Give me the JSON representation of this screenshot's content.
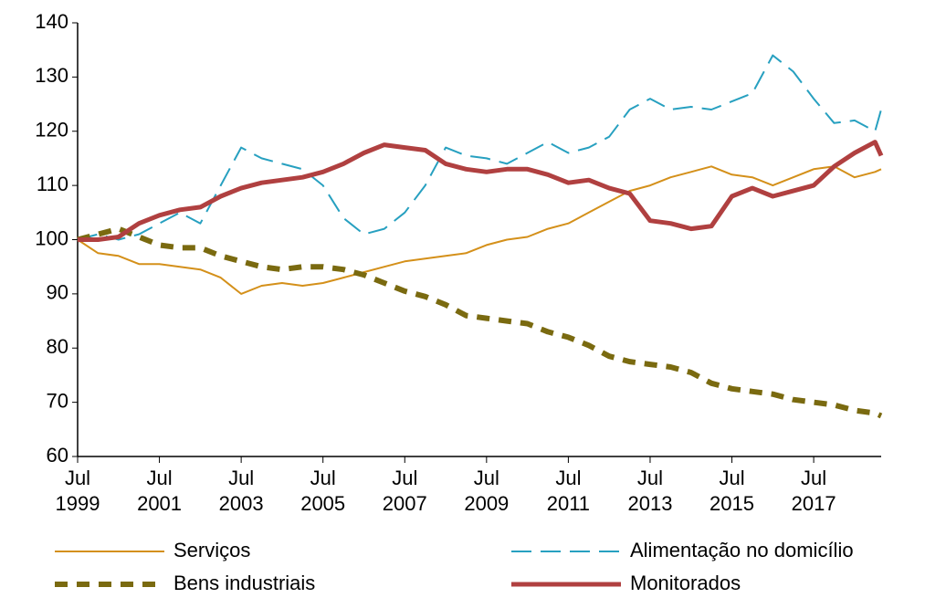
{
  "chart_data": {
    "type": "line",
    "x": [
      1999.5,
      2000,
      2000.5,
      2001,
      2001.5,
      2002,
      2002.5,
      2003,
      2003.5,
      2004,
      2004.5,
      2005,
      2005.5,
      2006,
      2006.5,
      2007,
      2007.5,
      2008,
      2008.5,
      2009,
      2009.5,
      2010,
      2010.5,
      2011,
      2011.5,
      2012,
      2012.5,
      2013,
      2013.5,
      2014,
      2014.5,
      2015,
      2015.5,
      2016,
      2016.5,
      2017,
      2017.5,
      2018,
      2018.5,
      2019,
      2019.15
    ],
    "xlim": [
      1999.5,
      2019.15
    ],
    "xticks": [
      {
        "value": 1999.5,
        "label": "Jul 1999"
      },
      {
        "value": 2001.5,
        "label": "Jul 2001"
      },
      {
        "value": 2003.5,
        "label": "Jul 2003"
      },
      {
        "value": 2005.5,
        "label": "Jul 2005"
      },
      {
        "value": 2007.5,
        "label": "Jul 2007"
      },
      {
        "value": 2009.5,
        "label": "Jul 2009"
      },
      {
        "value": 2011.5,
        "label": "Jul 2011"
      },
      {
        "value": 2013.5,
        "label": "Jul 2013"
      },
      {
        "value": 2015.5,
        "label": "Jul 2015"
      },
      {
        "value": 2017.5,
        "label": "Jul 2017"
      }
    ],
    "ylim": [
      60,
      140
    ],
    "yticks": [
      60,
      70,
      80,
      90,
      100,
      110,
      120,
      130,
      140
    ],
    "grid": false,
    "legend": "bottom",
    "series": [
      {
        "name": "Serviços",
        "color": "#d4901a",
        "style": "solid",
        "width": 2,
        "values": [
          100,
          97.5,
          97,
          95.5,
          95.5,
          95,
          94.5,
          93,
          90,
          91.5,
          92,
          91.5,
          92,
          93,
          94,
          95,
          96,
          96.5,
          97,
          97.5,
          99,
          100,
          100.5,
          102,
          103,
          105,
          107,
          109,
          110,
          111.5,
          112.5,
          113.5,
          112,
          111.5,
          110,
          111.5,
          113,
          113.5,
          111.5,
          112.5,
          113
        ]
      },
      {
        "name": "Alimentação no domicílio",
        "color": "#27a0c0",
        "style": "dashed",
        "width": 2,
        "values": [
          100,
          101,
          100,
          101,
          103,
          105,
          103,
          110,
          117,
          115,
          114,
          113,
          110,
          104,
          101,
          102,
          105,
          110,
          117,
          115.5,
          115,
          114,
          116,
          118,
          116,
          117,
          119,
          124,
          126,
          124,
          124.5,
          124,
          125.5,
          127,
          134,
          131,
          126,
          121.5,
          122,
          120,
          124
        ]
      },
      {
        "name": "Bens industriais",
        "color": "#7a6a10",
        "style": "dashed",
        "width": 6,
        "values": [
          100,
          101,
          102,
          100.5,
          99,
          98.5,
          98.5,
          97,
          96,
          95,
          94.5,
          95,
          95,
          94.5,
          93.5,
          92,
          90.5,
          89.5,
          88,
          86,
          85.5,
          85,
          84.5,
          83,
          82,
          80.5,
          78.5,
          77.5,
          77,
          76.5,
          75.5,
          73.5,
          72.5,
          72,
          71.5,
          70.5,
          70,
          69.5,
          68.5,
          68,
          67.5
        ]
      },
      {
        "name": "Monitorados",
        "color": "#b04040",
        "style": "solid",
        "width": 5,
        "values": [
          100,
          100,
          100.5,
          103,
          104.5,
          105.5,
          106,
          108,
          109.5,
          110.5,
          111,
          111.5,
          112.5,
          114,
          116,
          117.5,
          117,
          116.5,
          114,
          113,
          112.5,
          113,
          113,
          112,
          110.5,
          111,
          109.5,
          108.5,
          103.5,
          103,
          102,
          102.5,
          108,
          109.5,
          108,
          109,
          110,
          113.5,
          116,
          118,
          115.5
        ]
      }
    ]
  }
}
